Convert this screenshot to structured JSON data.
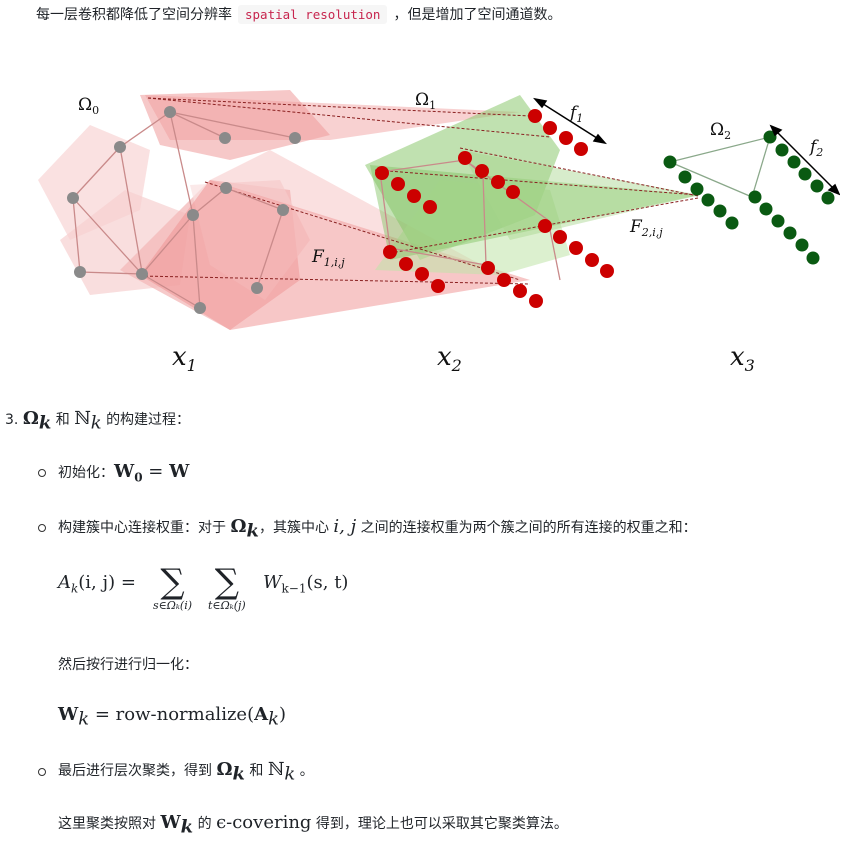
{
  "intro": {
    "before": "每一层卷积都降低了空间分辨率",
    "code": "spatial resolution",
    "after": "，但是增加了空间通道数。"
  },
  "figure": {
    "omega0": "Ω",
    "omega0_sub": "0",
    "omega1": "Ω",
    "omega1_sub": "1",
    "omega2": "Ω",
    "omega2_sub": "2",
    "f1": "f",
    "f1_sub": "1",
    "f2": "f",
    "f2_sub": "2",
    "F1": "F",
    "F1_sub": "1,i,j",
    "F2": "F",
    "F2_sub": "2,i,j",
    "x1": "x",
    "x1_sub": "1",
    "x2": "x",
    "x2_sub": "2",
    "x3": "x",
    "x3_sub": "3",
    "colors": {
      "red_node": "#cc0000",
      "green_node": "#0a5a12",
      "gray_node": "#8a8a8a",
      "pink_fill": "#f0a0a0",
      "green_fill": "#8cc870"
    }
  },
  "item3": {
    "number": "3.",
    "omega_k": "Ω",
    "k": "k",
    "and": "和",
    "nk": "ℕ",
    "rest": "的构建过程："
  },
  "bullet1": {
    "label": "初始化：",
    "w0": "W",
    "w0_sub": "0",
    "eq": " = ",
    "w": "W"
  },
  "bullet2": {
    "before": "构建簇中心连接权重：对于",
    "omega": "Ω",
    "k": "k",
    "middle": "，其簇中心",
    "ij": "i, j",
    "after": "之间的连接权重为两个簇之间的所有连接的权重之和："
  },
  "formula1": {
    "lhs": "A",
    "lhs_sub": "k",
    "lhs_args": "(i, j) =",
    "sum1_lim": "s∈Ωₖ(i)",
    "sum2_lim": "t∈Ωₖ(j)",
    "rhs": "W",
    "rhs_sub": "k−1",
    "rhs_args": "(s, t)",
    "sigma": "∑"
  },
  "normalize_text": "然后按行进行归一化：",
  "formula2": {
    "lhs": "W",
    "lhs_sub": "k",
    "eq": " = row-normalize(",
    "a": "A",
    "a_sub": "k",
    "close": ")"
  },
  "bullet3": {
    "before": "最后进行层次聚类，得到",
    "omega": "Ω",
    "k": "k",
    "and": "和",
    "nk": "ℕ",
    "after": "。"
  },
  "closing": {
    "before": "这里聚类按照对",
    "w": "W",
    "k": "k",
    "middle": "的",
    "eps": "ϵ-covering",
    "after": "得到，理论上也可以采取其它聚类算法。"
  }
}
